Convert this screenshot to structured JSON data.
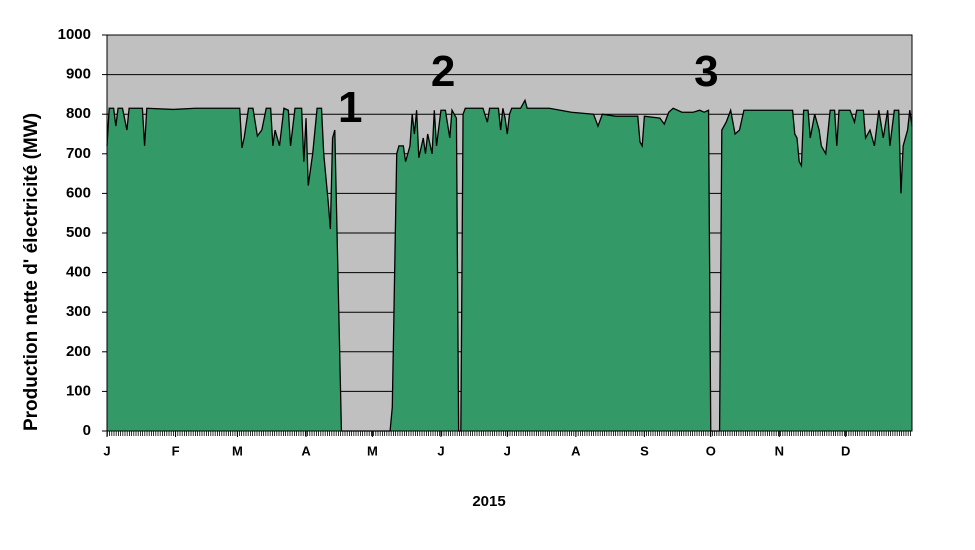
{
  "chart_data": {
    "type": "area",
    "ylabel": "Production nette d' électricité (MW)",
    "xlabel": "2015",
    "color": "#339966",
    "background": "#c0c0c0",
    "grid": true,
    "xlim": [
      0,
      364
    ],
    "ylim": [
      0,
      1000
    ],
    "yticks": [
      0,
      100,
      200,
      300,
      400,
      500,
      600,
      700,
      800,
      900,
      1000
    ],
    "xticks": [
      {
        "value": 0,
        "label": "J"
      },
      {
        "value": 31,
        "label": "F"
      },
      {
        "value": 59,
        "label": "M"
      },
      {
        "value": 90,
        "label": "A"
      },
      {
        "value": 120,
        "label": "M"
      },
      {
        "value": 151,
        "label": "J"
      },
      {
        "value": 181,
        "label": "J"
      },
      {
        "value": 212,
        "label": "A"
      },
      {
        "value": 243,
        "label": "S"
      },
      {
        "value": 273,
        "label": "O"
      },
      {
        "value": 304,
        "label": "N"
      },
      {
        "value": 334,
        "label": "D"
      }
    ],
    "annotations": [
      {
        "text": "1",
        "x": 110,
        "y": 810
      },
      {
        "text": "2",
        "x": 152,
        "y": 900
      },
      {
        "text": "3",
        "x": 271,
        "y": 900
      }
    ],
    "x": [
      0,
      1,
      3,
      4,
      5,
      7,
      9,
      10,
      16,
      17,
      18,
      30,
      40,
      50,
      60,
      61,
      62,
      64,
      66,
      68,
      70,
      72,
      74,
      75,
      76,
      78,
      80,
      82,
      83,
      85,
      88,
      89,
      90,
      91,
      93,
      95,
      97,
      98,
      100,
      101,
      102,
      103,
      106,
      128,
      129,
      131,
      132,
      134,
      135,
      137,
      138,
      139,
      140,
      141,
      143,
      144,
      145,
      147,
      148,
      149,
      151,
      153,
      155,
      156,
      158,
      159,
      160,
      161,
      162,
      170,
      172,
      173,
      177,
      178,
      179,
      180,
      181,
      182,
      183,
      187,
      189,
      190,
      200,
      205,
      210,
      220,
      222,
      224,
      230,
      240,
      241,
      242,
      243,
      250,
      252,
      254,
      256,
      260,
      265,
      268,
      270,
      272,
      273,
      277,
      278,
      280,
      282,
      284,
      286,
      288,
      300,
      310,
      311,
      312,
      313,
      314,
      315,
      317,
      318,
      320,
      322,
      323,
      325,
      327,
      329,
      330,
      331,
      336,
      338,
      339,
      342,
      343,
      345,
      347,
      349,
      351,
      353,
      354,
      356,
      358,
      359,
      360,
      362,
      363,
      364
    ],
    "values": [
      720,
      815,
      815,
      770,
      815,
      815,
      760,
      815,
      815,
      720,
      815,
      812,
      815,
      815,
      815,
      715,
      740,
      815,
      815,
      745,
      760,
      815,
      815,
      720,
      760,
      720,
      815,
      810,
      720,
      815,
      815,
      680,
      790,
      620,
      700,
      815,
      815,
      700,
      580,
      510,
      740,
      760,
      0,
      0,
      60,
      700,
      720,
      720,
      680,
      720,
      800,
      750,
      810,
      690,
      740,
      700,
      750,
      700,
      810,
      720,
      810,
      810,
      740,
      810,
      790,
      0,
      0,
      800,
      815,
      815,
      780,
      815,
      815,
      760,
      815,
      790,
      750,
      800,
      815,
      815,
      835,
      815,
      815,
      810,
      805,
      800,
      770,
      800,
      795,
      795,
      730,
      720,
      795,
      790,
      775,
      805,
      815,
      805,
      805,
      810,
      805,
      810,
      0,
      0,
      760,
      780,
      810,
      750,
      760,
      810,
      810,
      810,
      750,
      740,
      680,
      670,
      810,
      810,
      740,
      800,
      760,
      720,
      700,
      810,
      810,
      720,
      810,
      810,
      780,
      810,
      810,
      740,
      760,
      720,
      810,
      740,
      810,
      720,
      810,
      810,
      600,
      720,
      760,
      810,
      770
    ]
  }
}
